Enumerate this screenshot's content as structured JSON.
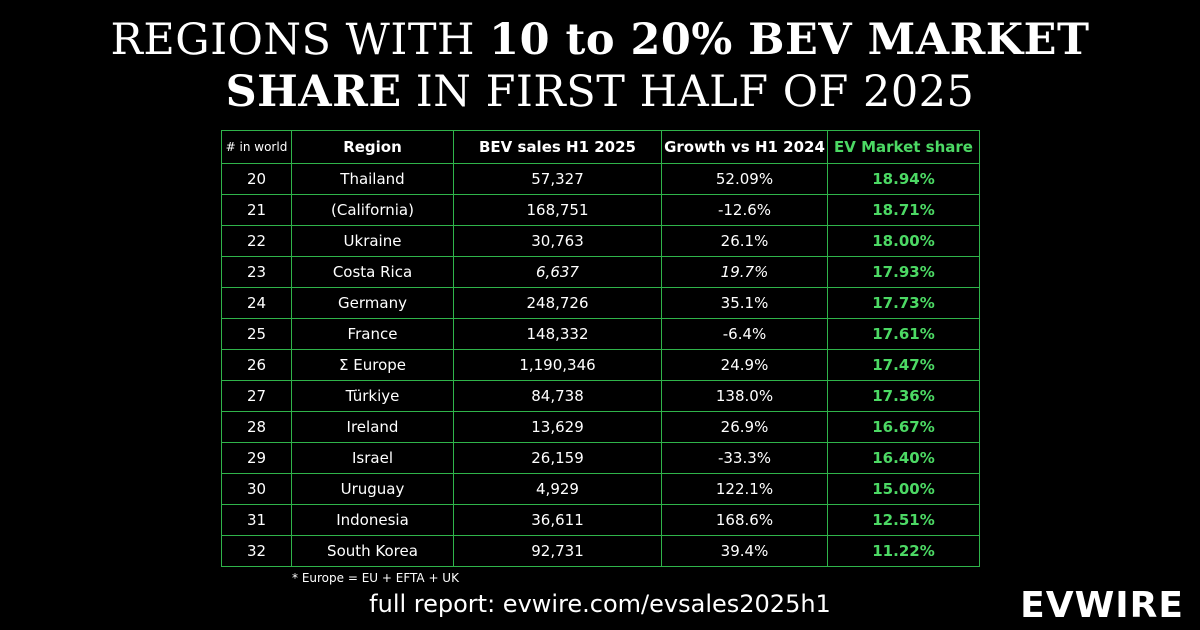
{
  "title": {
    "line1_normal": "REGIONS WITH ",
    "line1_bold": "10 to 20% BEV MARKET",
    "line2_bold": "SHARE",
    "line2_normal": " IN FIRST HALF OF 2025"
  },
  "colors": {
    "background": "#000000",
    "grid": "#2fb34a",
    "accent_green": "#4cd964",
    "text": "#ffffff"
  },
  "chart_data": {
    "type": "table",
    "columns": [
      "# in world",
      "Region",
      "BEV sales H1 2025",
      "Growth vs H1 2024",
      "EV Market share"
    ],
    "rows": [
      {
        "rank": "20",
        "region": "Thailand",
        "sales": "57,327",
        "growth": "52.09%",
        "share": "18.94%",
        "italic": false
      },
      {
        "rank": "21",
        "region": "(California)",
        "sales": "168,751",
        "growth": "-12.6%",
        "share": "18.71%",
        "italic": false
      },
      {
        "rank": "22",
        "region": "Ukraine",
        "sales": "30,763",
        "growth": "26.1%",
        "share": "18.00%",
        "italic": false
      },
      {
        "rank": "23",
        "region": "Costa Rica",
        "sales": "6,637",
        "growth": "19.7%",
        "share": "17.93%",
        "italic": true
      },
      {
        "rank": "24",
        "region": "Germany",
        "sales": "248,726",
        "growth": "35.1%",
        "share": "17.73%",
        "italic": false
      },
      {
        "rank": "25",
        "region": "France",
        "sales": "148,332",
        "growth": "-6.4%",
        "share": "17.61%",
        "italic": false
      },
      {
        "rank": "26",
        "region": "Σ Europe",
        "sales": "1,190,346",
        "growth": "24.9%",
        "share": "17.47%",
        "italic": false
      },
      {
        "rank": "27",
        "region": "Türkiye",
        "sales": "84,738",
        "growth": "138.0%",
        "share": "17.36%",
        "italic": false
      },
      {
        "rank": "28",
        "region": "Ireland",
        "sales": "13,629",
        "growth": "26.9%",
        "share": "16.67%",
        "italic": false
      },
      {
        "rank": "29",
        "region": "Israel",
        "sales": "26,159",
        "growth": "-33.3%",
        "share": "16.40%",
        "italic": false
      },
      {
        "rank": "30",
        "region": "Uruguay",
        "sales": "4,929",
        "growth": "122.1%",
        "share": "15.00%",
        "italic": false
      },
      {
        "rank": "31",
        "region": "Indonesia",
        "sales": "36,611",
        "growth": "168.6%",
        "share": "12.51%",
        "italic": false
      },
      {
        "rank": "32",
        "region": "South Korea",
        "sales": "92,731",
        "growth": "39.4%",
        "share": "11.22%",
        "italic": false
      }
    ]
  },
  "footnote": "* Europe = EU + EFTA + UK",
  "report": "full report: evwire.com/evsales2025h1",
  "logo": "EVWIRE"
}
